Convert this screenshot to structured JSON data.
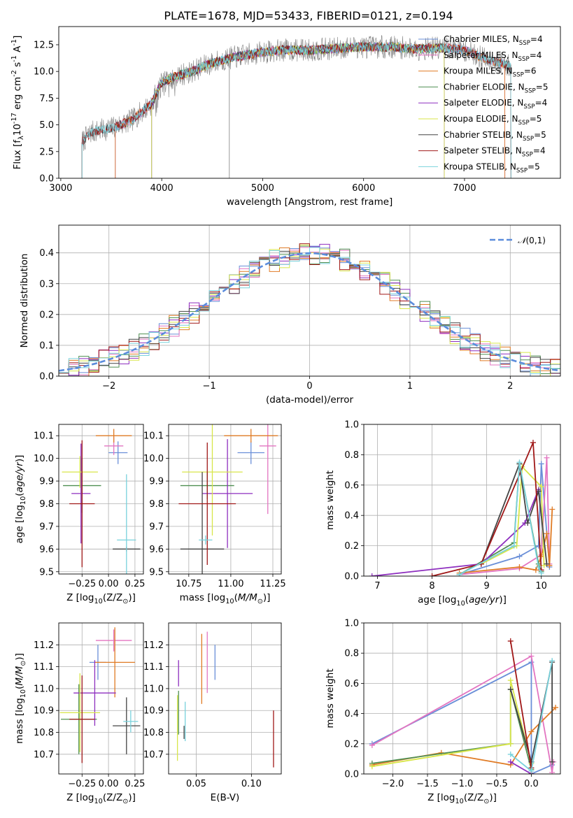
{
  "title": "PLATE=1678, MJD=53433, FIBERID=0121, z=0.194",
  "colors": {
    "Chabrier MILES": "#6a8fd8",
    "Salpeter MILES": "#e375c1",
    "Kroupa MILES": "#e07b25",
    "Chabrier ELODIE": "#4f8f52",
    "Salpeter ELODIE": "#8e2fbf",
    "Kroupa ELODIE": "#d8e64a",
    "Chabrier STELIB": "#444444",
    "Salpeter STELIB": "#a01818",
    "Kroupa STELIB": "#79d2dc"
  },
  "legend": [
    "Chabrier MILES, N$_{SSP}$=4",
    "Salpeter MILES, N$_{SSP}$=4",
    "Kroupa MILES, N$_{SSP}$=6",
    "Chabrier ELODIE, N$_{SSP}$=5",
    "Salpeter ELODIE, N$_{SSP}$=4",
    "Kroupa ELODIE, N$_{SSP}$=5",
    "Chabrier STELIB, N$_{SSP}$=5",
    "Salpeter STELIB, N$_{SSP}$=4",
    "Kroupa STELIB, N$_{SSP}$=5"
  ],
  "chart_data": [
    {
      "id": "spectrum",
      "type": "line",
      "xlabel": "wavelength [Angstrom, rest frame]",
      "ylabel": "Flux [f$_\\lambda$10$^{-17}$ erg cm$^{-2}$ s$^{-1}$ A$^{-1}$]",
      "xlim": [
        2980,
        7950
      ],
      "ylim": [
        0,
        14.2
      ],
      "xticks": [
        3000,
        4000,
        5000,
        6000,
        7000
      ],
      "yticks": [
        0.0,
        2.5,
        5.0,
        7.5,
        10.0,
        12.5
      ],
      "data_spectrum": {
        "x_range": [
          3210,
          7460
        ],
        "x": [
          3210,
          3300,
          3500,
          3700,
          3900,
          4000,
          4100,
          4300,
          4500,
          4700,
          5000,
          5200,
          5500,
          5800,
          6000,
          6300,
          6500,
          6800,
          7000,
          7200,
          7460
        ],
        "y": [
          3.4,
          4.3,
          4.7,
          5.4,
          7.0,
          9.0,
          9.4,
          10.0,
          10.8,
          11.3,
          11.8,
          12.0,
          12.0,
          12.2,
          12.3,
          12.3,
          12.1,
          12.2,
          12.0,
          11.2,
          10.5
        ]
      },
      "model_x_range": {
        "Chabrier MILES": [
          3540,
          7400
        ],
        "Salpeter MILES": [
          3540,
          7400
        ],
        "Kroupa MILES": [
          3540,
          7400
        ],
        "Chabrier ELODIE": [
          3900,
          6800
        ],
        "Salpeter ELODIE": [
          3900,
          6800
        ],
        "Kroupa ELODIE": [
          3900,
          6800
        ],
        "Chabrier STELIB": [
          3210,
          7460
        ],
        "Salpeter STELIB": [
          3210,
          7460
        ],
        "Kroupa STELIB": [
          3210,
          7460
        ]
      }
    },
    {
      "id": "residuals",
      "type": "histogram",
      "xlabel": "(data-model)/error",
      "ylabel": "Normed distribution",
      "xlim": [
        -2.5,
        2.5
      ],
      "ylim": [
        0,
        0.49
      ],
      "xticks": [
        -2,
        -1,
        0,
        1,
        2
      ],
      "yticks": [
        0.0,
        0.1,
        0.2,
        0.3,
        0.4
      ],
      "bin_width": 0.1,
      "bin_start": -2.5,
      "legend_label": "$\\mathcal{N}(0,1)$",
      "reference_curve": "normal(0,1)"
    },
    {
      "id": "age-Z",
      "type": "errorbar",
      "xlabel": "Z [log$_{10}$(Z/Z$_\\odot$)]",
      "ylabel": "age  [log$_{10}$($age/yr$)]",
      "xlim": [
        -0.47,
        0.33
      ],
      "ylim": [
        9.49,
        10.15
      ],
      "xticks": [
        -0.25,
        0.0,
        0.25
      ],
      "yticks": [
        9.5,
        9.6,
        9.7,
        9.8,
        9.9,
        10.0,
        10.1
      ],
      "points": [
        {
          "model": "Chabrier MILES",
          "x": 0.09,
          "xerr": 0.09,
          "y": 10.025,
          "yerr": 0.05
        },
        {
          "model": "Salpeter MILES",
          "x": 0.05,
          "xerr": 0.09,
          "y": 10.055,
          "yerr": 0.04
        },
        {
          "model": "Kroupa MILES",
          "x": 0.05,
          "xerr": 0.17,
          "y": 10.1,
          "yerr": 0.03
        },
        {
          "model": "Chabrier ELODIE",
          "x": -0.25,
          "xerr": 0.18,
          "y": 9.88,
          "yerr": 0.12
        },
        {
          "model": "Salpeter ELODIE",
          "x": -0.26,
          "xerr": 0.09,
          "y": 9.845,
          "yerr": 0.22
        },
        {
          "model": "Kroupa ELODIE",
          "x": -0.27,
          "xerr": 0.17,
          "y": 9.94,
          "yerr": 0.07
        },
        {
          "model": "Chabrier STELIB",
          "x": 0.17,
          "xerr": 0.13,
          "y": 9.6,
          "yerr": 0.01
        },
        {
          "model": "Salpeter STELIB",
          "x": -0.25,
          "xerr": 0.12,
          "y": 9.8,
          "yerr": 0.28
        },
        {
          "model": "Kroupa STELIB",
          "x": 0.17,
          "xerr": 0.09,
          "y": 9.64,
          "yerr": 0.29
        }
      ]
    },
    {
      "id": "age-mass",
      "type": "errorbar",
      "xlabel": "mass [log$_{10}$($M/M_\\odot$)]",
      "ylabel": "",
      "xlim": [
        10.63,
        11.3
      ],
      "ylim": [
        9.49,
        10.15
      ],
      "xticks": [
        10.75,
        11.0,
        11.25
      ],
      "yticks": [
        9.5,
        9.6,
        9.7,
        9.8,
        9.9,
        10.0,
        10.1
      ],
      "points": [
        {
          "model": "Chabrier MILES",
          "x": 11.12,
          "xerr": 0.08,
          "y": 10.025,
          "yerr": 0.05
        },
        {
          "model": "Salpeter MILES",
          "x": 11.22,
          "xerr": 0.05,
          "y": 10.055,
          "yerr": 0.3
        },
        {
          "model": "Kroupa MILES",
          "x": 11.12,
          "xerr": 0.16,
          "y": 10.1,
          "yerr": 0.03
        },
        {
          "model": "Chabrier ELODIE",
          "x": 10.86,
          "xerr": 0.16,
          "y": 9.88,
          "yerr": 0.06
        },
        {
          "model": "Salpeter ELODIE",
          "x": 10.98,
          "xerr": 0.15,
          "y": 9.845,
          "yerr": 0.24
        },
        {
          "model": "Kroupa ELODIE",
          "x": 10.89,
          "xerr": 0.18,
          "y": 9.94,
          "yerr": 0.28
        },
        {
          "model": "Chabrier STELIB",
          "x": 10.83,
          "xerr": 0.13,
          "y": 9.6,
          "yerr": 0.34
        },
        {
          "model": "Salpeter STELIB",
          "x": 10.86,
          "xerr": 0.17,
          "y": 9.8,
          "yerr": 0.27
        },
        {
          "model": "Kroupa STELIB",
          "x": 10.85,
          "xerr": 0.04,
          "y": 9.64,
          "yerr": 0.02
        }
      ]
    },
    {
      "id": "weight-age",
      "type": "line",
      "xlabel": "age  [log$_{10}$($age/yr$)]",
      "ylabel": "mass weight",
      "xlim": [
        6.75,
        10.35
      ],
      "ylim": [
        0,
        1.0
      ],
      "xticks": [
        7,
        8,
        9,
        10
      ],
      "yticks": [
        0.0,
        0.2,
        0.4,
        0.6,
        0.8,
        1.0
      ],
      "series": [
        {
          "model": "Chabrier MILES",
          "x": [
            8.5,
            9.6,
            9.95,
            10.0,
            10.15
          ],
          "y": [
            0.01,
            0.13,
            0.2,
            0.74,
            0.06
          ]
        },
        {
          "model": "Salpeter MILES",
          "x": [
            8.5,
            9.6,
            10.0,
            10.1,
            10.15
          ],
          "y": [
            0.01,
            0.05,
            0.14,
            0.78,
            0.08
          ]
        },
        {
          "model": "Kroupa MILES",
          "x": [
            8.5,
            9.6,
            9.9,
            10.0,
            10.1,
            10.15,
            10.2
          ],
          "y": [
            0.02,
            0.06,
            0.04,
            0.13,
            0.28,
            0.07,
            0.44
          ]
        },
        {
          "model": "Chabrier ELODIE",
          "x": [
            8.5,
            9.5,
            9.6,
            9.95,
            10.0
          ],
          "y": [
            0.01,
            0.22,
            0.74,
            0.08,
            0.03
          ]
        },
        {
          "model": "Salpeter ELODIE",
          "x": [
            6.9,
            8.9,
            9.7,
            9.95
          ],
          "y": [
            0.0,
            0.08,
            0.35,
            0.57
          ]
        },
        {
          "model": "Kroupa ELODIE",
          "x": [
            8.9,
            9.55,
            9.65,
            10.0,
            10.05
          ],
          "y": [
            0.08,
            0.2,
            0.72,
            0.59,
            0.07
          ]
        },
        {
          "model": "Chabrier STELIB",
          "x": [
            8.9,
            9.6,
            9.75,
            9.95,
            10.1
          ],
          "y": [
            0.08,
            0.74,
            0.35,
            0.56,
            0.08
          ]
        },
        {
          "model": "Salpeter STELIB",
          "x": [
            8.0,
            8.9,
            9.85,
            10.0
          ],
          "y": [
            0.0,
            0.08,
            0.88,
            0.04
          ]
        },
        {
          "model": "Kroupa STELIB",
          "x": [
            8.5,
            9.5,
            9.6,
            9.95,
            10.0
          ],
          "y": [
            0.01,
            0.2,
            0.75,
            0.06,
            0.02
          ]
        }
      ]
    },
    {
      "id": "mass-Z",
      "type": "errorbar",
      "xlabel": "Z [log$_{10}$(Z/Z$_\\odot$)]",
      "ylabel": "mass [log$_{10}$($M/M_\\odot$)]",
      "xlim": [
        -0.47,
        0.33
      ],
      "ylim": [
        10.61,
        11.3
      ],
      "xticks": [
        -0.25,
        0.0,
        0.25
      ],
      "yticks": [
        10.7,
        10.8,
        10.9,
        11.0,
        11.1,
        11.2
      ],
      "points": [
        {
          "model": "Chabrier MILES",
          "x": -0.1,
          "xerr": 0.08,
          "y": 11.12,
          "yerr": 0.08
        },
        {
          "model": "Salpeter MILES",
          "x": 0.05,
          "xerr": 0.17,
          "y": 11.22,
          "yerr": 0.05
        },
        {
          "model": "Kroupa MILES",
          "x": 0.06,
          "xerr": 0.19,
          "y": 11.12,
          "yerr": 0.16
        },
        {
          "model": "Chabrier ELODIE",
          "x": -0.28,
          "xerr": 0.17,
          "y": 10.86,
          "yerr": 0.16
        },
        {
          "model": "Salpeter ELODIE",
          "x": -0.13,
          "xerr": 0.2,
          "y": 10.98,
          "yerr": 0.15
        },
        {
          "model": "Kroupa ELODIE",
          "x": -0.27,
          "xerr": 0.19,
          "y": 10.89,
          "yerr": 0.18
        },
        {
          "model": "Chabrier STELIB",
          "x": 0.17,
          "xerr": 0.13,
          "y": 10.83,
          "yerr": 0.13
        },
        {
          "model": "Salpeter STELIB",
          "x": -0.25,
          "xerr": 0.12,
          "y": 10.86,
          "yerr": 0.2
        },
        {
          "model": "Kroupa STELIB",
          "x": 0.21,
          "xerr": 0.07,
          "y": 10.85,
          "yerr": 0.05
        }
      ]
    },
    {
      "id": "mass-EBV",
      "type": "errorbar",
      "xlabel": "E(B-V)",
      "ylabel": "",
      "xlim": [
        0.025,
        0.127
      ],
      "ylim": [
        10.61,
        11.3
      ],
      "xticks": [
        0.05,
        0.1
      ],
      "yticks": [
        10.7,
        10.8,
        10.9,
        11.0,
        11.1,
        11.2
      ],
      "points": [
        {
          "model": "Chabrier MILES",
          "x": 0.067,
          "xerr": 0,
          "y": 11.12,
          "yerr": 0.08
        },
        {
          "model": "Salpeter MILES",
          "x": 0.06,
          "xerr": 0,
          "y": 11.12,
          "yerr": 0.14
        },
        {
          "model": "Kroupa MILES",
          "x": 0.055,
          "xerr": 0,
          "y": 11.09,
          "yerr": 0.16
        },
        {
          "model": "Chabrier ELODIE",
          "x": 0.034,
          "xerr": 0,
          "y": 10.89,
          "yerr": 0.1
        },
        {
          "model": "Salpeter ELODIE",
          "x": 0.034,
          "xerr": 0,
          "y": 11.07,
          "yerr": 0.06
        },
        {
          "model": "Kroupa ELODIE",
          "x": 0.033,
          "xerr": 0,
          "y": 10.82,
          "yerr": 0.15
        },
        {
          "model": "Chabrier STELIB",
          "x": 0.039,
          "xerr": 0,
          "y": 10.8,
          "yerr": 0.03
        },
        {
          "model": "Salpeter STELIB",
          "x": 0.12,
          "xerr": 0,
          "y": 10.77,
          "yerr": 0.13
        },
        {
          "model": "Kroupa STELIB",
          "x": 0.04,
          "xerr": 0,
          "y": 10.85,
          "yerr": 0.09
        }
      ]
    },
    {
      "id": "weight-Z",
      "type": "line",
      "xlabel": "Z [log$_{10}$(Z/Z$_\\odot$)]",
      "ylabel": "mass weight",
      "xlim": [
        -2.42,
        0.42
      ],
      "ylim": [
        0,
        1.0
      ],
      "xticks": [
        -2.0,
        -1.5,
        -1.0,
        -0.5,
        0.0
      ],
      "yticks": [
        0.0,
        0.2,
        0.4,
        0.6,
        0.8,
        1.0
      ],
      "series": [
        {
          "model": "Chabrier MILES",
          "x": [
            -2.3,
            0.0,
            0.0,
            0.3
          ],
          "y": [
            0.2,
            0.74,
            0.0,
            0.06
          ]
        },
        {
          "model": "Salpeter MILES",
          "x": [
            -2.3,
            0.0,
            0.3,
            0.32
          ],
          "y": [
            0.19,
            0.78,
            0.01,
            0.08
          ]
        },
        {
          "model": "Kroupa MILES",
          "x": [
            -2.3,
            -1.3,
            -0.3,
            0.0,
            0.35
          ],
          "y": [
            0.06,
            0.14,
            0.06,
            0.28,
            0.44
          ]
        },
        {
          "model": "Chabrier ELODIE",
          "x": [
            -2.3,
            -0.3,
            -0.3,
            0.0
          ],
          "y": [
            0.07,
            0.2,
            0.56,
            0.03
          ]
        },
        {
          "model": "Salpeter ELODIE",
          "x": [
            -0.3,
            0.0,
            0.0
          ],
          "y": [
            0.08,
            0.0,
            0.08
          ]
        },
        {
          "model": "Kroupa ELODIE",
          "x": [
            -2.3,
            -0.3,
            -0.3,
            0.0
          ],
          "y": [
            0.05,
            0.2,
            0.62,
            0.07
          ]
        },
        {
          "model": "Chabrier STELIB",
          "x": [
            -0.3,
            0.0,
            0.3,
            0.3
          ],
          "y": [
            0.56,
            0.08,
            0.74,
            0.08
          ]
        },
        {
          "model": "Salpeter STELIB",
          "x": [
            -0.3,
            0.0,
            0.0
          ],
          "y": [
            0.88,
            0.04,
            0.0
          ]
        },
        {
          "model": "Kroupa STELIB",
          "x": [
            -0.3,
            0.0,
            0.3
          ],
          "y": [
            0.13,
            0.02,
            0.75
          ]
        }
      ]
    }
  ]
}
